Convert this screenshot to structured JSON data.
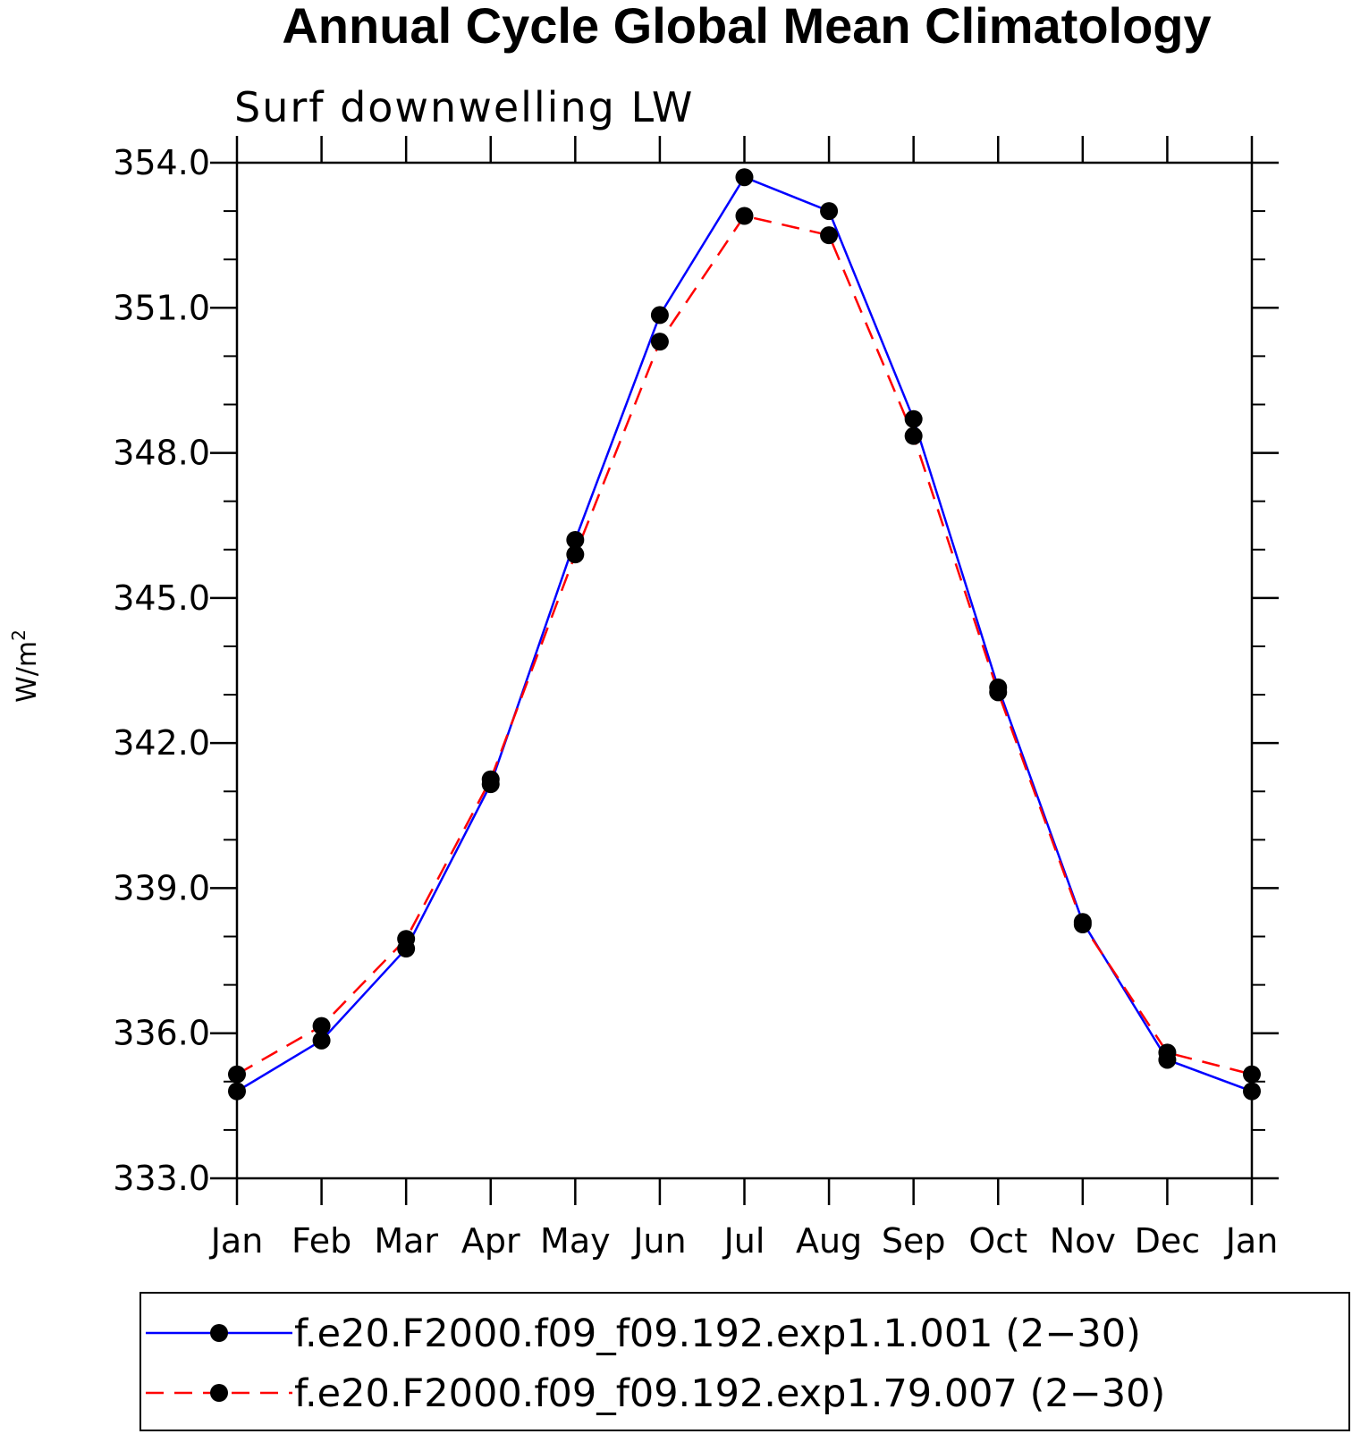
{
  "chart_data": {
    "type": "line",
    "title": "Annual Cycle Global Mean Climatology",
    "subtitle": "Surf downwelling LW",
    "ylabel": "W/m",
    "ylabel_sup": "2",
    "xlabel": "",
    "categories": [
      "Jan",
      "Feb",
      "Mar",
      "Apr",
      "May",
      "Jun",
      "Jul",
      "Aug",
      "Sep",
      "Oct",
      "Nov",
      "Dec",
      "Jan"
    ],
    "ylim": [
      333.0,
      354.0
    ],
    "yticks": [
      333.0,
      336.0,
      339.0,
      342.0,
      345.0,
      348.0,
      351.0,
      354.0
    ],
    "ytick_labels": [
      "333.0",
      "336.0",
      "339.0",
      "342.0",
      "345.0",
      "348.0",
      "351.0",
      "354.0"
    ],
    "grid": false,
    "legend_position": "bottom",
    "series": [
      {
        "name": "f.e20.F2000.f09_f09.192.exp1.1.001 (2−30)",
        "color": "#0000ff",
        "dashed": false,
        "marker": "filled-circle",
        "values": [
          334.8,
          335.85,
          337.75,
          341.15,
          346.2,
          350.85,
          353.7,
          353.0,
          348.7,
          343.15,
          338.3,
          335.45,
          334.8
        ]
      },
      {
        "name": "f.e20.F2000.f09_f09.192.exp1.79.007 (2−30)",
        "color": "#ff0000",
        "dashed": true,
        "marker": "filled-circle",
        "values": [
          335.15,
          336.15,
          337.95,
          341.25,
          345.9,
          350.3,
          352.9,
          352.5,
          348.35,
          343.05,
          338.25,
          335.6,
          335.15
        ]
      }
    ]
  }
}
